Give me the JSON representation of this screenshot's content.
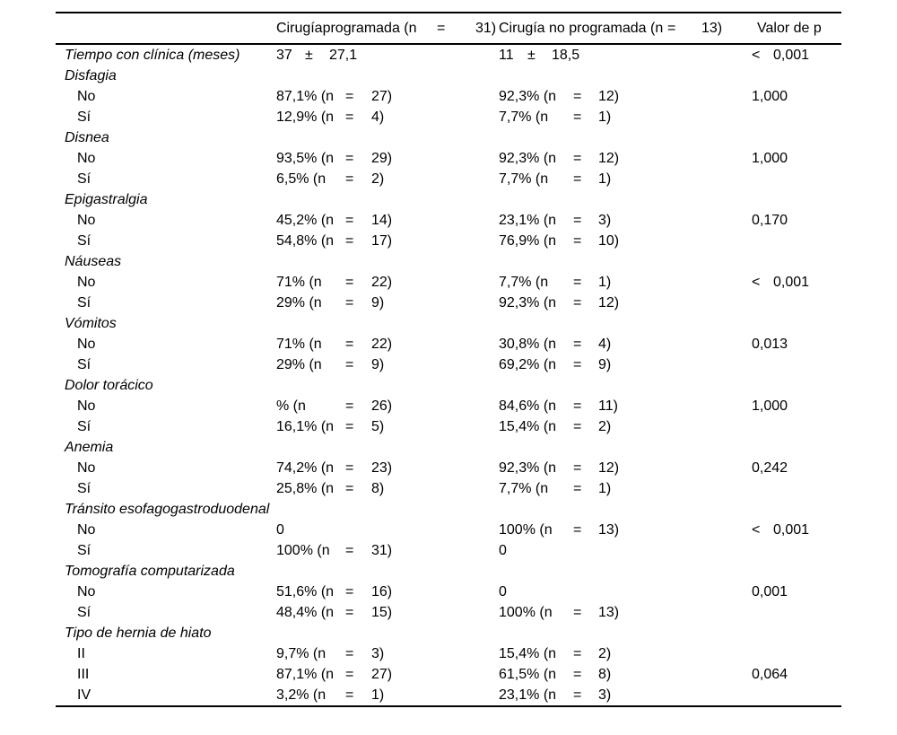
{
  "table": {
    "header": {
      "col_label": "",
      "col_programada": "Cirugíaprogramada (n = 31)",
      "col_no_programada": "Cirugía no programada (n = 13)",
      "col_p": "Valor de p"
    },
    "rows": [
      {
        "label": "Tiempo con clínica (meses)",
        "italic": true,
        "indent": false,
        "c1": "37 ± 27,1",
        "c2": "11 ± 18,5",
        "p": "< 0,001"
      },
      {
        "label": "Disfagia",
        "italic": true,
        "indent": false,
        "c1": "",
        "c2": "",
        "p": ""
      },
      {
        "label": "No",
        "italic": false,
        "indent": true,
        "c1": "87,1% (n = 27)",
        "c2": "92,3% (n = 12)",
        "p": "1,000"
      },
      {
        "label": "Sí",
        "italic": false,
        "indent": true,
        "c1": "12,9% (n = 4)",
        "c2": "7,7% (n = 1)",
        "p": ""
      },
      {
        "label": "Disnea",
        "italic": true,
        "indent": false,
        "c1": "",
        "c2": "",
        "p": ""
      },
      {
        "label": "No",
        "italic": false,
        "indent": true,
        "c1": "93,5% (n = 29)",
        "c2": "92,3% (n = 12)",
        "p": "1,000"
      },
      {
        "label": "Sí",
        "italic": false,
        "indent": true,
        "c1": "6,5% (n = 2)",
        "c2": "7,7% (n = 1)",
        "p": ""
      },
      {
        "label": "Epigastralgia",
        "italic": true,
        "indent": false,
        "c1": "",
        "c2": "",
        "p": ""
      },
      {
        "label": "No",
        "italic": false,
        "indent": true,
        "c1": "45,2% (n = 14)",
        "c2": "23,1% (n = 3)",
        "p": "0,170"
      },
      {
        "label": "Sí",
        "italic": false,
        "indent": true,
        "c1": "54,8% (n = 17)",
        "c2": "76,9% (n = 10)",
        "p": ""
      },
      {
        "label": "Náuseas",
        "italic": true,
        "indent": false,
        "c1": "",
        "c2": "",
        "p": ""
      },
      {
        "label": "No",
        "italic": false,
        "indent": true,
        "c1": "71% (n = 22)",
        "c2": "7,7% (n = 1)",
        "p": "< 0,001"
      },
      {
        "label": "Sí",
        "italic": false,
        "indent": true,
        "c1": "29% (n = 9)",
        "c2": "92,3% (n = 12)",
        "p": ""
      },
      {
        "label": "Vómitos",
        "italic": true,
        "indent": false,
        "c1": "",
        "c2": "",
        "p": ""
      },
      {
        "label": "No",
        "italic": false,
        "indent": true,
        "c1": "71% (n = 22)",
        "c2": "30,8% (n = 4)",
        "p": "0,013"
      },
      {
        "label": "Sí",
        "italic": false,
        "indent": true,
        "c1": "29% (n = 9)",
        "c2": "69,2% (n = 9)",
        "p": ""
      },
      {
        "label": "Dolor torácico",
        "italic": true,
        "indent": false,
        "c1": "",
        "c2": "",
        "p": ""
      },
      {
        "label": "No",
        "italic": false,
        "indent": true,
        "c1": "% (n = 26)",
        "c2": "84,6% (n = 11)",
        "p": "1,000"
      },
      {
        "label": "Sí",
        "italic": false,
        "indent": true,
        "c1": "16,1% (n = 5)",
        "c2": "15,4% (n = 2)",
        "p": ""
      },
      {
        "label": "Anemia",
        "italic": true,
        "indent": false,
        "c1": "",
        "c2": "",
        "p": ""
      },
      {
        "label": "No",
        "italic": false,
        "indent": true,
        "c1": "74,2% (n = 23)",
        "c2": "92,3% (n = 12)",
        "p": "0,242"
      },
      {
        "label": "Sí",
        "italic": false,
        "indent": true,
        "c1": "25,8% (n = 8)",
        "c2": "7,7% (n = 1)",
        "p": ""
      },
      {
        "label": "Tránsito esofagogastroduodenal",
        "italic": true,
        "indent": false,
        "c1": "",
        "c2": "",
        "p": ""
      },
      {
        "label": "No",
        "italic": false,
        "indent": true,
        "c1": "0",
        "c2": "100% (n = 13)",
        "p": "< 0,001"
      },
      {
        "label": "Sí",
        "italic": false,
        "indent": true,
        "c1": "100% (n = 31)",
        "c2": "0",
        "p": ""
      },
      {
        "label": "Tomografía computarizada",
        "italic": true,
        "indent": false,
        "c1": "",
        "c2": "",
        "p": ""
      },
      {
        "label": "No",
        "italic": false,
        "indent": true,
        "c1": "51,6% (n = 16)",
        "c2": "0",
        "p": "0,001"
      },
      {
        "label": "Sí",
        "italic": false,
        "indent": true,
        "c1": "48,4% (n = 15)",
        "c2": "100% (n = 13)",
        "p": ""
      },
      {
        "label": "Tipo de hernia de hiato",
        "italic": true,
        "indent": false,
        "c1": "",
        "c2": "",
        "p": ""
      },
      {
        "label": "II",
        "italic": false,
        "indent": true,
        "c1": "9,7% (n = 3)",
        "c2": "15,4% (n = 2)",
        "p": ""
      },
      {
        "label": "III",
        "italic": false,
        "indent": true,
        "c1": "87,1% (n = 27)",
        "c2": "61,5% (n = 8)",
        "p": "0,064"
      },
      {
        "label": "IV",
        "italic": false,
        "indent": true,
        "c1": "3,2% (n = 1)",
        "c2": "23,1% (n = 3)",
        "p": ""
      }
    ]
  }
}
